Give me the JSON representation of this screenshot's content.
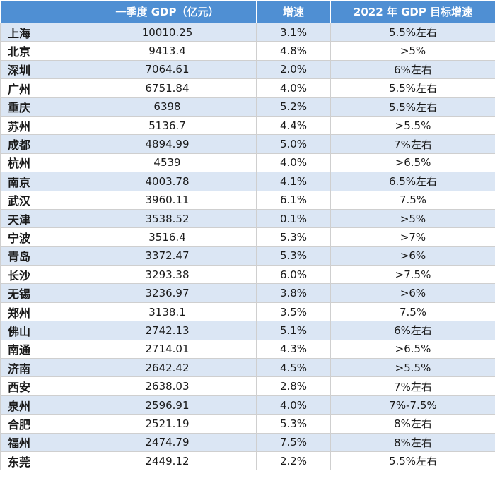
{
  "table": {
    "headers": [
      "",
      "一季度 GDP（亿元）",
      "增速",
      "2022 年 GDP 目标增速"
    ],
    "rows": [
      [
        "上海",
        "10010.25",
        "3.1%",
        "5.5%左右"
      ],
      [
        "北京",
        "9413.4",
        "4.8%",
        ">5%"
      ],
      [
        "深圳",
        "7064.61",
        "2.0%",
        "6%左右"
      ],
      [
        "广州",
        "6751.84",
        "4.0%",
        "5.5%左右"
      ],
      [
        "重庆",
        "6398",
        "5.2%",
        "5.5%左右"
      ],
      [
        "苏州",
        "5136.7",
        "4.4%",
        ">5.5%"
      ],
      [
        "成都",
        "4894.99",
        "5.0%",
        "7%左右"
      ],
      [
        "杭州",
        "4539",
        "4.0%",
        ">6.5%"
      ],
      [
        "南京",
        "4003.78",
        "4.1%",
        "6.5%左右"
      ],
      [
        "武汉",
        "3960.11",
        "6.1%",
        "7.5%"
      ],
      [
        "天津",
        "3538.52",
        "0.1%",
        ">5%"
      ],
      [
        "宁波",
        "3516.4",
        "5.3%",
        ">7%"
      ],
      [
        "青岛",
        "3372.47",
        "5.3%",
        ">6%"
      ],
      [
        "长沙",
        "3293.38",
        "6.0%",
        ">7.5%"
      ],
      [
        "无锡",
        "3236.97",
        "3.8%",
        ">6%"
      ],
      [
        "郑州",
        "3138.1",
        "3.5%",
        "7.5%"
      ],
      [
        "佛山",
        "2742.13",
        "5.1%",
        "6%左右"
      ],
      [
        "南通",
        "2714.01",
        "4.3%",
        ">6.5%"
      ],
      [
        "济南",
        "2642.42",
        "4.5%",
        ">5.5%"
      ],
      [
        "西安",
        "2638.03",
        "2.8%",
        "7%左右"
      ],
      [
        "泉州",
        "2596.91",
        "4.0%",
        "7%-7.5%"
      ],
      [
        "合肥",
        "2521.19",
        "5.3%",
        "8%左右"
      ],
      [
        "福州",
        "2474.79",
        "7.5%",
        "8%左右"
      ],
      [
        "东莞",
        "2449.12",
        "2.2%",
        "5.5%左右"
      ]
    ]
  },
  "colors": {
    "header_bg": "#4f8fd3",
    "header_text": "#ffffff",
    "shaded_row": "#dbe6f4",
    "plain_row": "#ffffff"
  }
}
